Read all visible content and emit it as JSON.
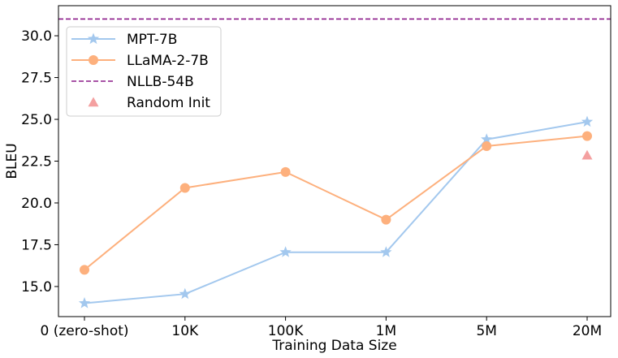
{
  "chart_data": {
    "type": "line",
    "xlabel": "Training Data Size",
    "ylabel": "BLEU",
    "categories": [
      "0 (zero-shot)",
      "10K",
      "100K",
      "1M",
      "5M",
      "20M"
    ],
    "ylim": [
      13.2,
      31.8
    ],
    "yticks": [
      "15.0",
      "17.5",
      "20.0",
      "22.5",
      "25.0",
      "27.5",
      "30.0"
    ],
    "grid": false,
    "legend_position": "upper-left",
    "series": [
      {
        "name": "MPT-7B",
        "values": [
          14.0,
          14.55,
          17.05,
          17.05,
          23.8,
          24.85
        ],
        "color": "#a3c8ee",
        "marker": "star"
      },
      {
        "name": "LLaMA-2-7B",
        "values": [
          16.0,
          20.9,
          21.85,
          19.0,
          23.4,
          24.0
        ],
        "color": "#fdb07d",
        "marker": "circle"
      }
    ],
    "reference_lines": [
      {
        "name": "NLLB-54B",
        "value": 31.0,
        "color": "#8b1a89",
        "style": "dashed"
      }
    ],
    "points": [
      {
        "name": "Random Init",
        "category": "20M",
        "value": 22.85,
        "color": "#f4a0a0",
        "marker": "triangle"
      }
    ]
  }
}
